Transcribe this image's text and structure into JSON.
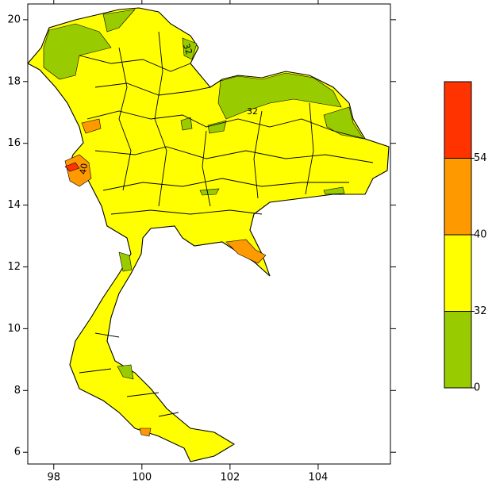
{
  "chart_data": {
    "type": "map",
    "xlim": [
      97.41,
      105.64
    ],
    "ylim": [
      5.62,
      20.51
    ],
    "xticks": [
      98,
      100,
      102,
      104
    ],
    "yticks": [
      6,
      8,
      10,
      12,
      14,
      16,
      18,
      20
    ],
    "colorbar": {
      "levels": [
        0,
        32,
        40,
        54
      ],
      "colors": [
        "#99cc00",
        "#ffff00",
        "#ff9900",
        "#ff3300"
      ]
    },
    "contour_labels": [
      "32",
      "40",
      "32"
    ]
  }
}
